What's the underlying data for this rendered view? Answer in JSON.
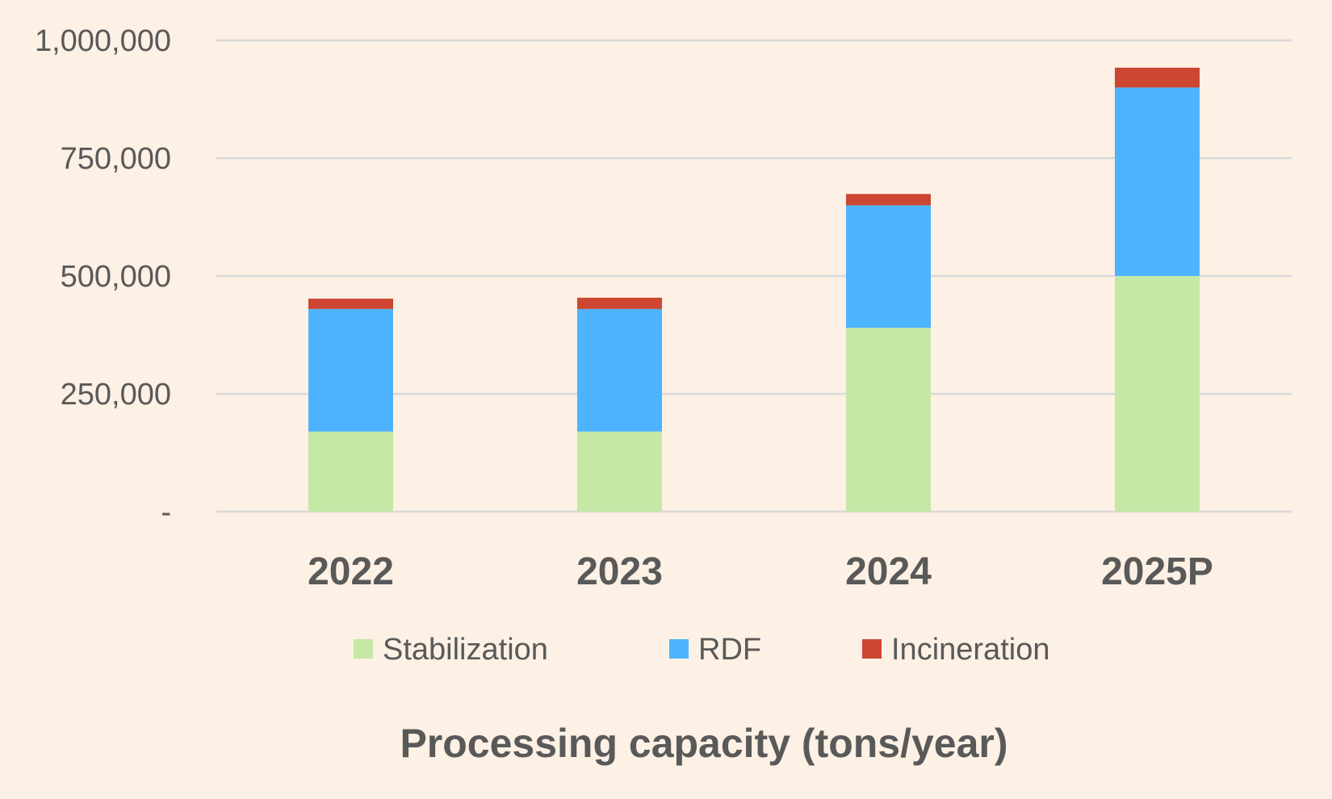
{
  "chart_data": {
    "type": "bar",
    "stacked": true,
    "title": "Processing capacity (tons/year)",
    "categories": [
      "2022",
      "2023",
      "2024",
      "2025P"
    ],
    "series": [
      {
        "name": "Stabilization",
        "color": "#c5e8a4",
        "values": [
          170000,
          170000,
          390000,
          500000
        ]
      },
      {
        "name": "RDF",
        "color": "#4db3ff",
        "values": [
          260000,
          260000,
          260000,
          400000
        ]
      },
      {
        "name": "Incineration",
        "color": "#cc4631",
        "values": [
          22000,
          24000,
          24000,
          42000
        ]
      }
    ],
    "ylim": [
      0,
      1000000
    ],
    "yticks": [
      0,
      250000,
      500000,
      750000,
      1000000
    ],
    "ytick_labels": [
      "-",
      "250,000",
      "500,000",
      "750,000",
      "1,000,000"
    ],
    "grid": true,
    "legend_position": "bottom",
    "background_color": "#fdf0e4",
    "text_color": "#595959",
    "grid_color": "#d9d9d9"
  }
}
